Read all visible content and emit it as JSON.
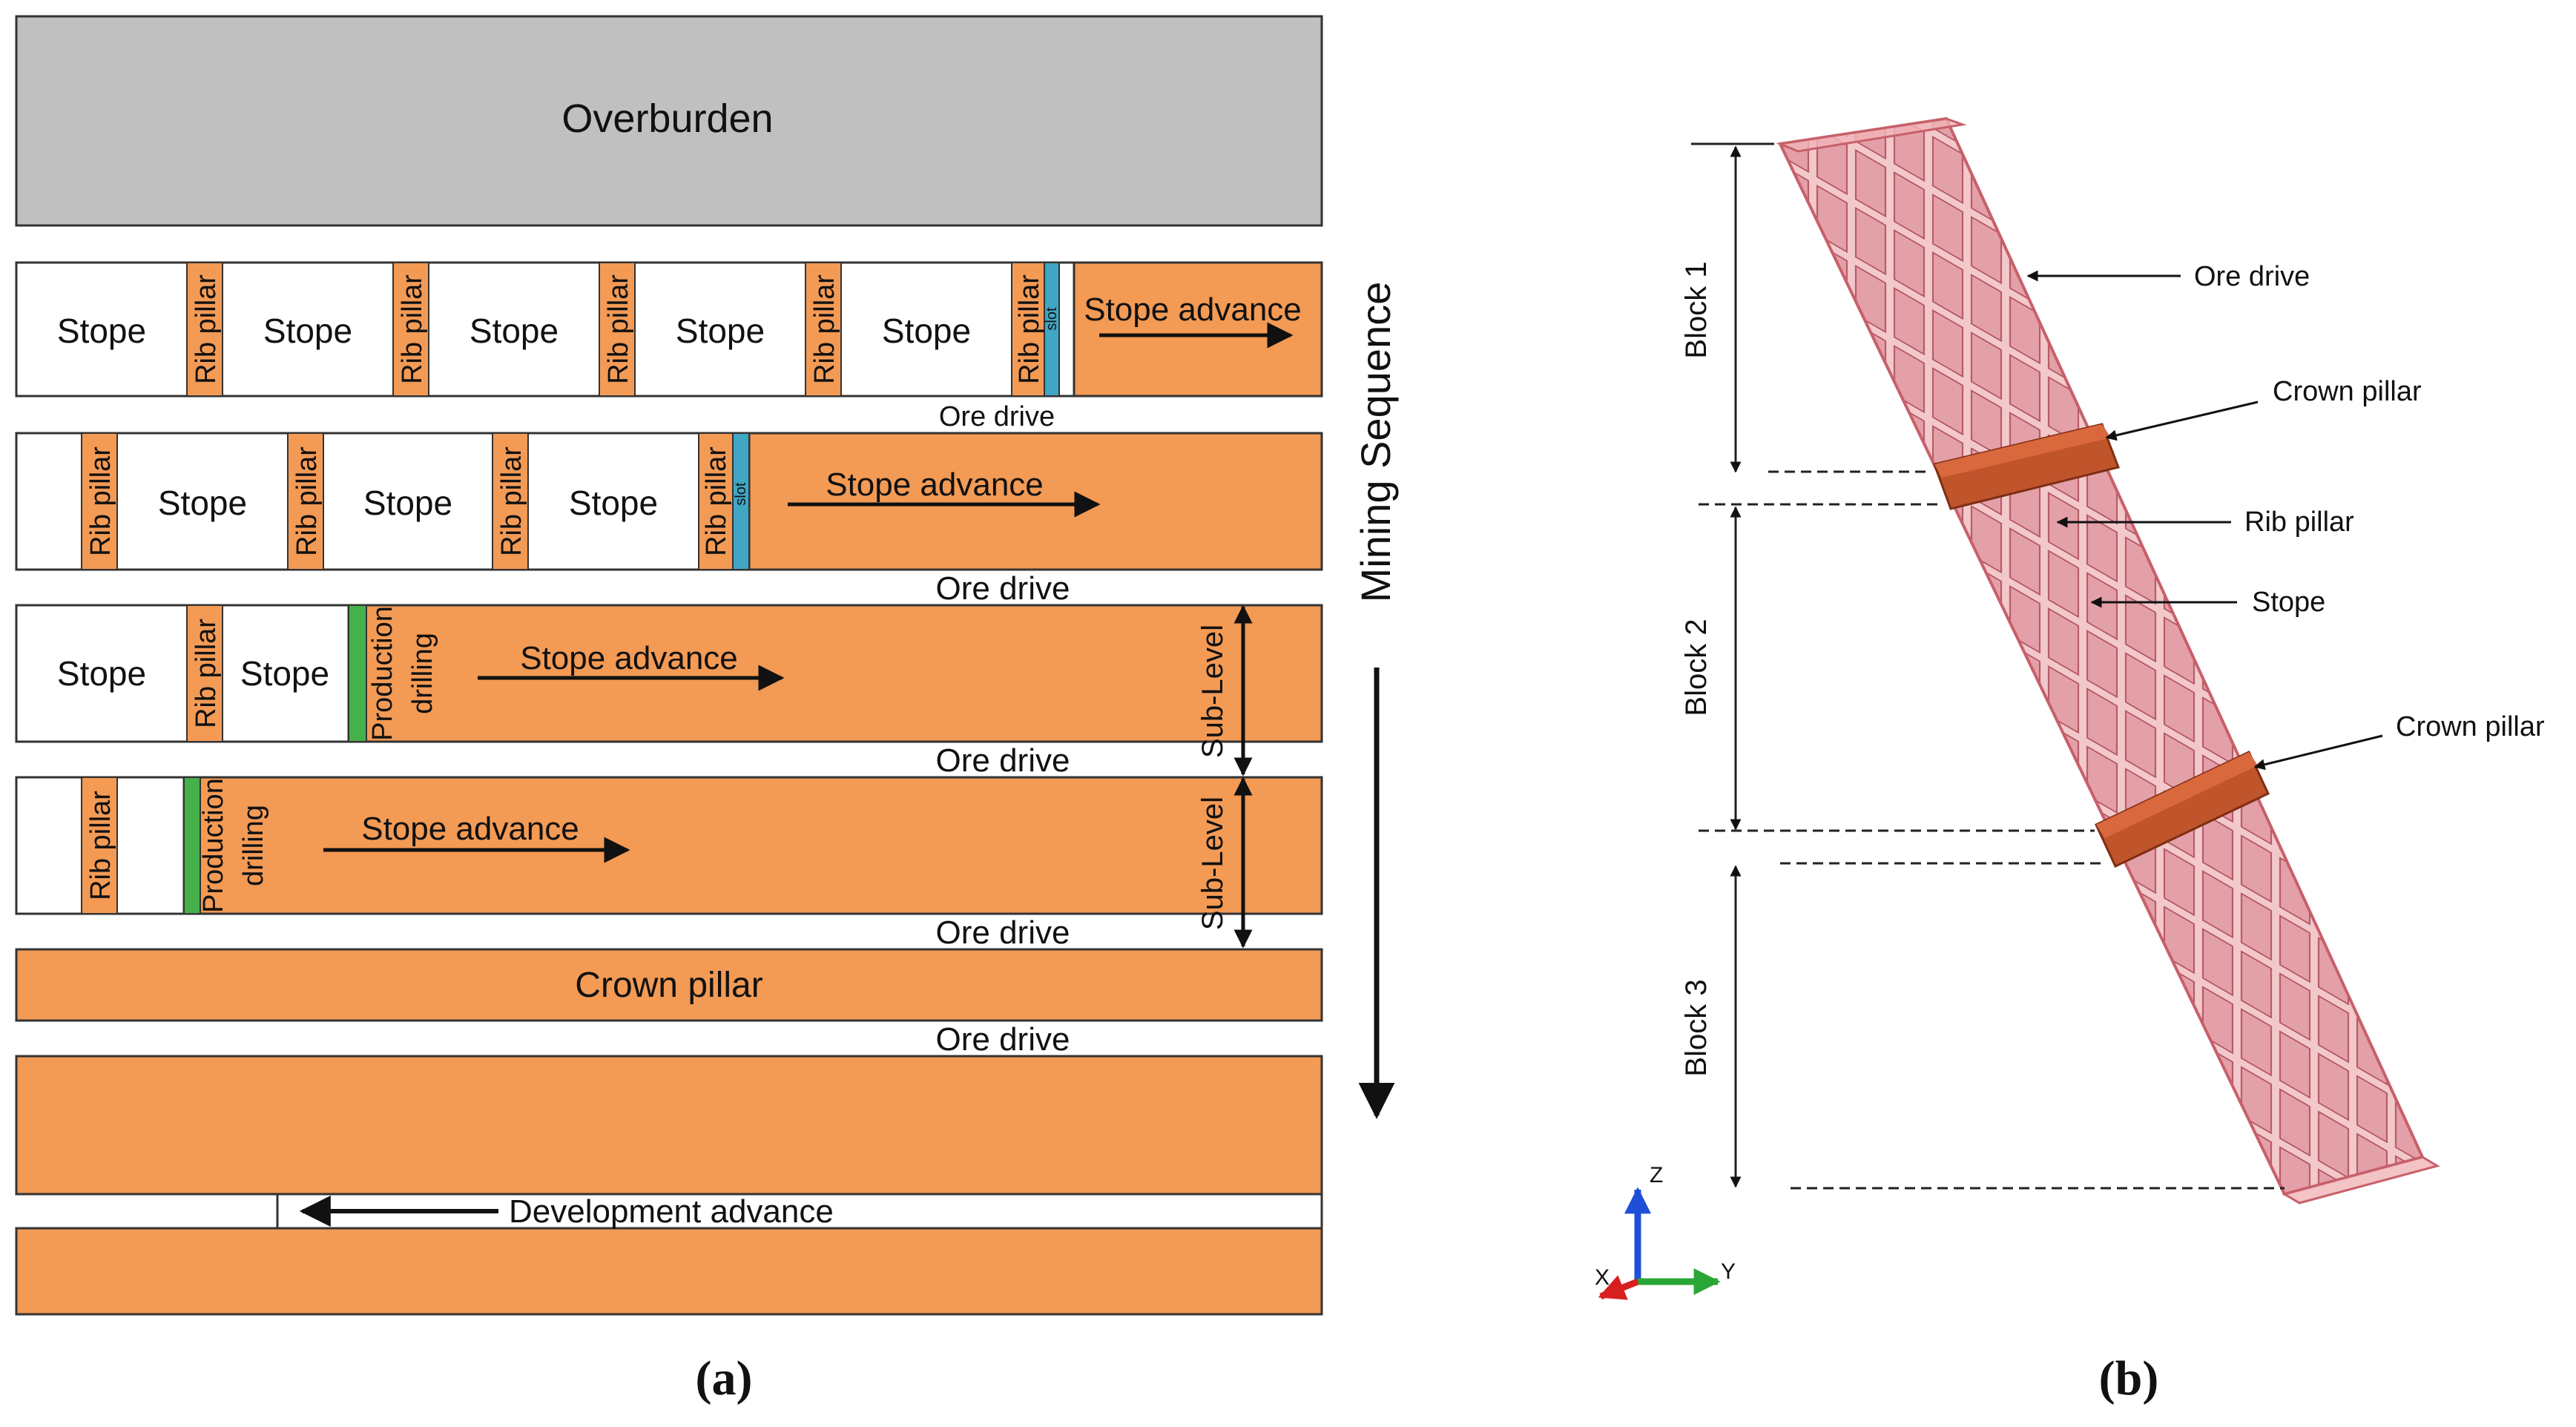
{
  "colors": {
    "overburden": "#c0c0c0",
    "ore": "#f39a55",
    "stope": "#ffffff",
    "slot": "#3fa6c4",
    "drilling": "#46b04a",
    "block": "#e79aa0",
    "block_edge": "#c7606a",
    "crown": "#c0542b",
    "axis_z": "#1f4fd8",
    "axis_y": "#2aa636",
    "axis_x": "#d81f1f"
  },
  "panel_a": {
    "overburden": "Overburden",
    "stope": "Stope",
    "rib_pillar": "Rib pillar",
    "slot": "slot",
    "stope_advance": "Stope advance",
    "ore_drive": "Ore drive",
    "production_drilling_1": "Production",
    "production_drilling_2": "drilling",
    "sub_level": "Sub-Level",
    "crown_pillar": "Crown pillar",
    "development_advance": "Development advance",
    "mining_sequence": "Mining Sequence",
    "caption": "(a)"
  },
  "panel_b": {
    "block_1": "Block 1",
    "block_2": "Block 2",
    "block_3": "Block 3",
    "ore_drive": "Ore drive",
    "crown_pillar_1": "Crown pillar",
    "rib_pillar": "Rib pillar",
    "stope": "Stope",
    "crown_pillar_2": "Crown pillar",
    "axis_z": "Z",
    "axis_y": "Y",
    "axis_x": "X",
    "caption": "(b)"
  }
}
